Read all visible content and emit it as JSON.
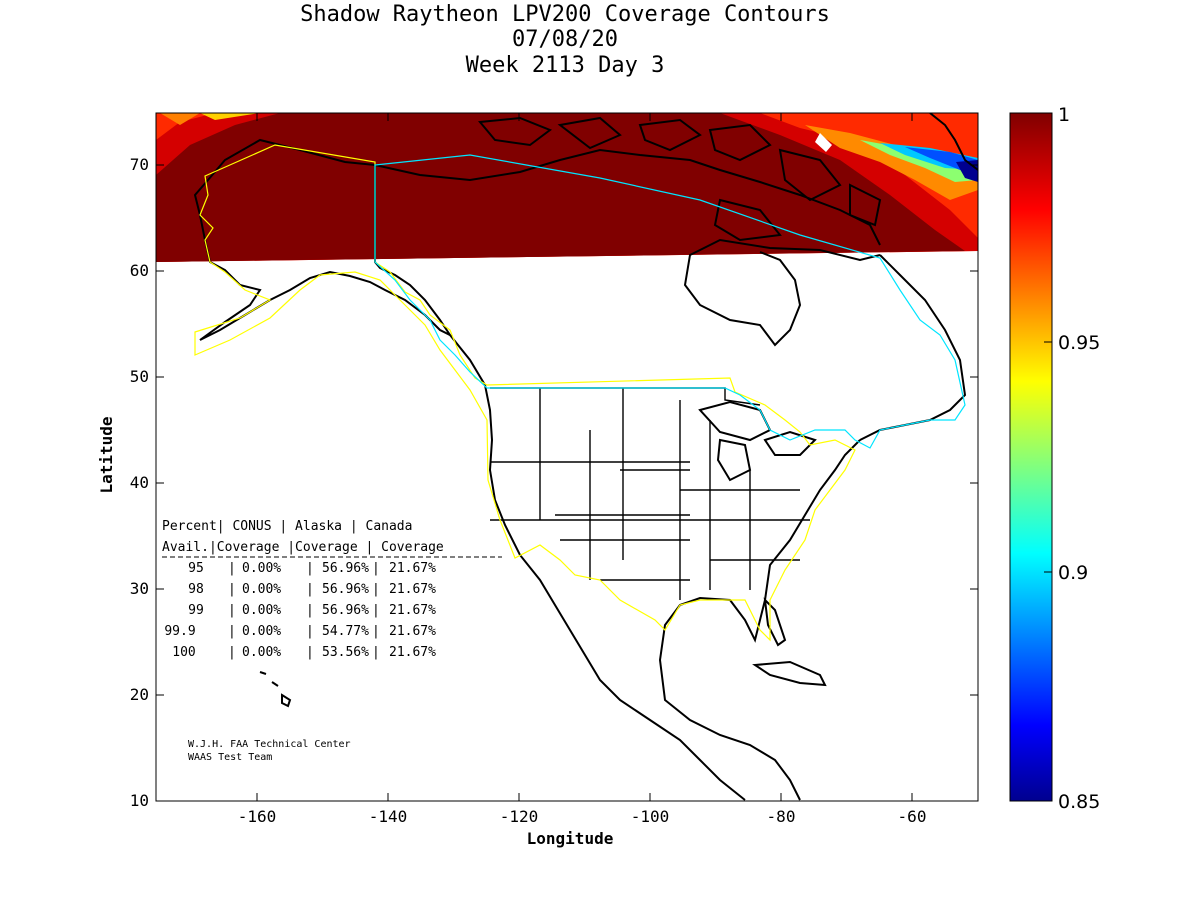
{
  "title": {
    "line1": "Shadow Raytheon LPV200 Coverage Contours",
    "line2": "07/08/20",
    "line3": "Week 2113 Day 3"
  },
  "axes": {
    "xlabel": "Longitude",
    "ylabel": "Latitude",
    "xlim": [
      -175,
      -50
    ],
    "ylim": [
      10,
      75
    ],
    "xticks": [
      "-160",
      "-140",
      "-120",
      "-100",
      "-80",
      "-60"
    ],
    "yticks": [
      "10",
      "20",
      "30",
      "40",
      "50",
      "60",
      "70"
    ]
  },
  "colorbar": {
    "range": [
      0.85,
      1
    ],
    "ticks": [
      "1",
      "0.95",
      "0.9",
      "0.85"
    ],
    "colormap": "jet"
  },
  "coverage_table": {
    "header1": "Percent| CONUS   | Alaska  | Canada",
    "header2": " Avail.|Coverage |Coverage | Coverage",
    "rows": [
      {
        "percent": "95",
        "conus": "0.00%",
        "alaska": "56.96%",
        "canada": "21.67%"
      },
      {
        "percent": "98",
        "conus": "0.00%",
        "alaska": "56.96%",
        "canada": "21.67%"
      },
      {
        "percent": "99",
        "conus": "0.00%",
        "alaska": "56.96%",
        "canada": "21.67%"
      },
      {
        "percent": "99.9",
        "conus": "0.00%",
        "alaska": "54.77%",
        "canada": "21.67%"
      },
      {
        "percent": "100",
        "conus": "0.00%",
        "alaska": "53.56%",
        "canada": "21.67%"
      }
    ]
  },
  "credit": {
    "line1": "W.J.H. FAA Technical Center",
    "line2": "WAAS Test Team"
  },
  "colors": {
    "dark_red": "#800000",
    "red": "#ff0000",
    "orange": "#ff8000",
    "yellow": "#ffff00",
    "cyan": "#00ffff",
    "blue": "#0000ff",
    "dark_blue": "#00008f",
    "service_area_yellow": "#ffff00",
    "service_area_cyan": "#00e5ff"
  }
}
